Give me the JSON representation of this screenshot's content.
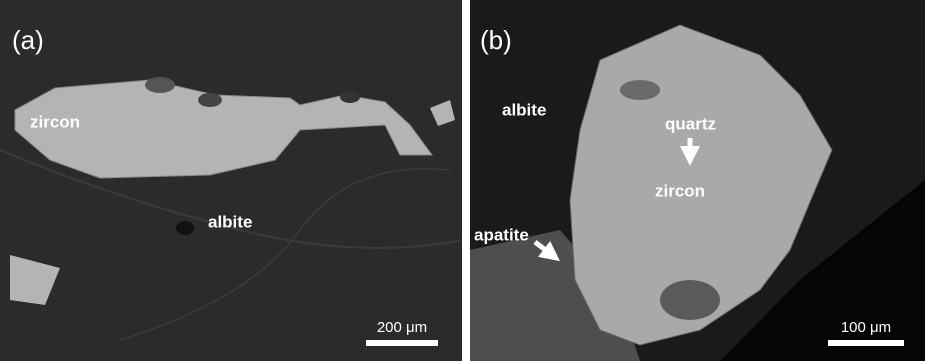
{
  "panels": [
    {
      "label": "(a)",
      "annotations": [
        "zircon",
        "albite"
      ],
      "scale_bar": "200 μm"
    },
    {
      "label": "(b)",
      "annotations": [
        "albite",
        "quartz",
        "zircon",
        "apatite"
      ],
      "scale_bar": "100 μm"
    }
  ]
}
